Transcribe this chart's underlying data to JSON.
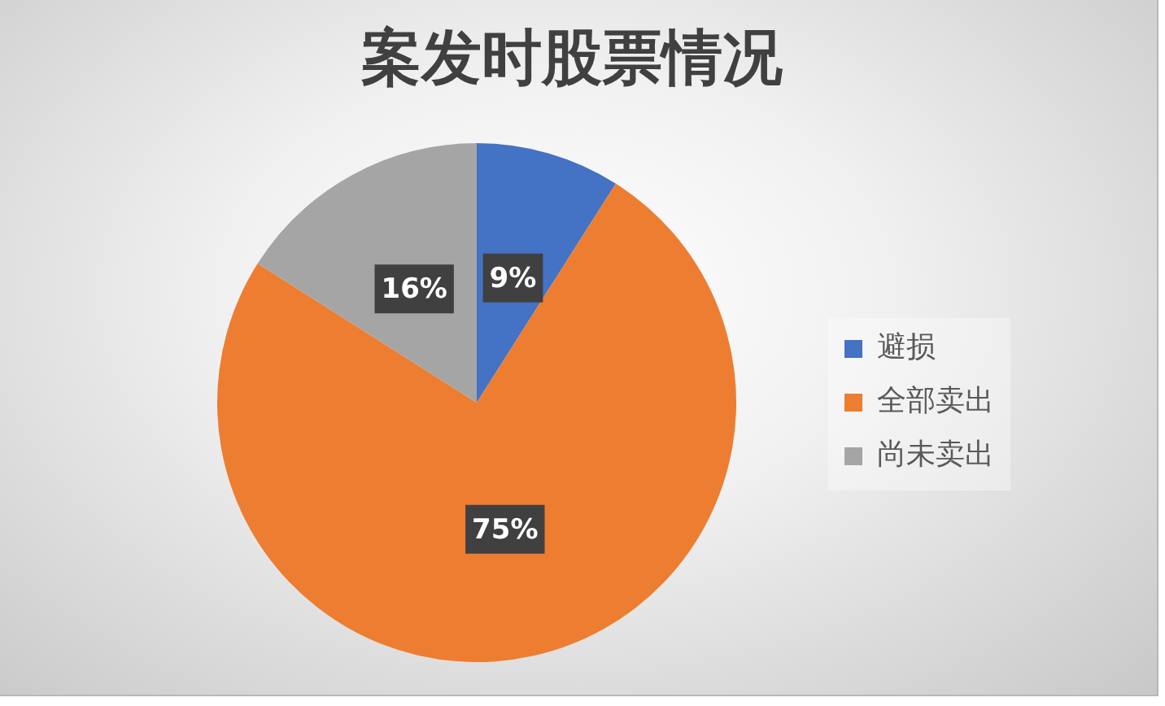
{
  "chart_data": {
    "type": "pie",
    "title": "案发时股票情况",
    "categories": [
      "避损",
      "全部卖出",
      "尚未卖出"
    ],
    "values": [
      9,
      75,
      16
    ],
    "colors": [
      "#4472c4",
      "#ed7d31",
      "#a5a5a5"
    ],
    "value_labels": [
      "9%",
      "75%",
      "16%"
    ],
    "legend": "right"
  }
}
